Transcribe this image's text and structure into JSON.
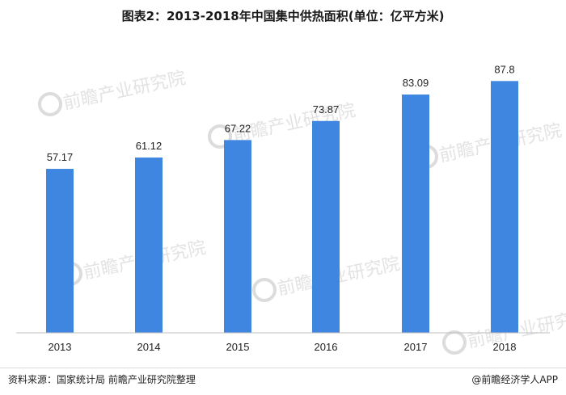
{
  "title": "图表2：2013-2018年中国集中供热面积(单位：亿平方米)",
  "footer": {
    "source": "资料来源：国家统计局 前瞻产业研究院整理",
    "brand": "@前瞻经济学人APP"
  },
  "watermark": {
    "text": "前瞻产业研究院"
  },
  "colors": {
    "bar": "#3f86e0",
    "axis": "#bfbfbf"
  },
  "chart_data": {
    "type": "bar",
    "categories": [
      "2013",
      "2014",
      "2015",
      "2016",
      "2017",
      "2018"
    ],
    "values": [
      57.17,
      61.12,
      67.22,
      73.87,
      83.09,
      87.8
    ],
    "value_labels": [
      "57.17",
      "61.12",
      "67.22",
      "73.87",
      "83.09",
      "87.8"
    ],
    "ylim": [
      0,
      100
    ],
    "grid": false,
    "legend": "none"
  }
}
